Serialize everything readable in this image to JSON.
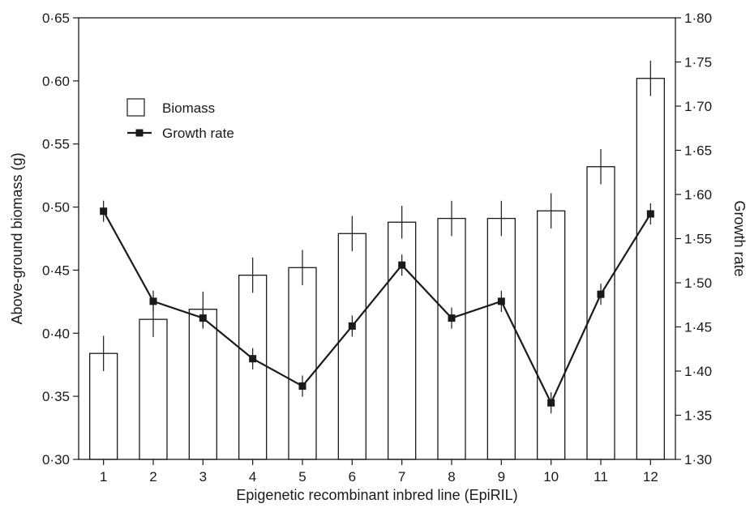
{
  "chart_data": {
    "type": "bar+line",
    "x": [
      1,
      2,
      3,
      4,
      5,
      6,
      7,
      8,
      9,
      10,
      11,
      12
    ],
    "x_tick_labels": [
      "1",
      "2",
      "3",
      "4",
      "5",
      "6",
      "7",
      "8",
      "9",
      "10",
      "11",
      "12"
    ],
    "xlabel": "Epigenetic recombinant inbred line (EpiRIL)",
    "ylabel_left": "Above-ground biomass (g)",
    "ylabel_right": "Growth rate",
    "ylim_left": [
      0.3,
      0.65
    ],
    "ylim_right": [
      1.3,
      1.8
    ],
    "y_left_ticks": [
      0.3,
      0.35,
      0.4,
      0.45,
      0.5,
      0.55,
      0.6,
      0.65
    ],
    "y_left_tick_labels": [
      "0·30",
      "0·35",
      "0·40",
      "0·45",
      "0·50",
      "0·55",
      "0·60",
      "0·65"
    ],
    "y_right_ticks": [
      1.3,
      1.35,
      1.4,
      1.45,
      1.5,
      1.55,
      1.6,
      1.65,
      1.7,
      1.75,
      1.8
    ],
    "y_right_tick_labels": [
      "1·30",
      "1·35",
      "1·40",
      "1·45",
      "1·50",
      "1·55",
      "1·60",
      "1·65",
      "1·70",
      "1·75",
      "1·80"
    ],
    "grid": false,
    "legend_position": "top-left",
    "series": [
      {
        "name": "Biomass",
        "type": "bar",
        "axis": "left",
        "values": [
          0.384,
          0.411,
          0.419,
          0.446,
          0.452,
          0.479,
          0.488,
          0.491,
          0.491,
          0.497,
          0.532,
          0.602
        ],
        "errors": [
          0.014,
          0.014,
          0.014,
          0.014,
          0.014,
          0.014,
          0.013,
          0.014,
          0.014,
          0.014,
          0.014,
          0.014
        ]
      },
      {
        "name": "Growth rate",
        "type": "line",
        "axis": "right",
        "marker": "square",
        "values": [
          1.581,
          1.479,
          1.46,
          1.414,
          1.383,
          1.451,
          1.52,
          1.46,
          1.479,
          1.364,
          1.487,
          1.578
        ],
        "errors": [
          0.012,
          0.012,
          0.012,
          0.012,
          0.012,
          0.012,
          0.012,
          0.012,
          0.012,
          0.012,
          0.012,
          0.012
        ]
      }
    ],
    "colors": {
      "bar_fill": "#ffffff",
      "bar_stroke": "#1a1a1a",
      "line": "#1a1a1a",
      "axis": "#1a1a1a"
    }
  }
}
